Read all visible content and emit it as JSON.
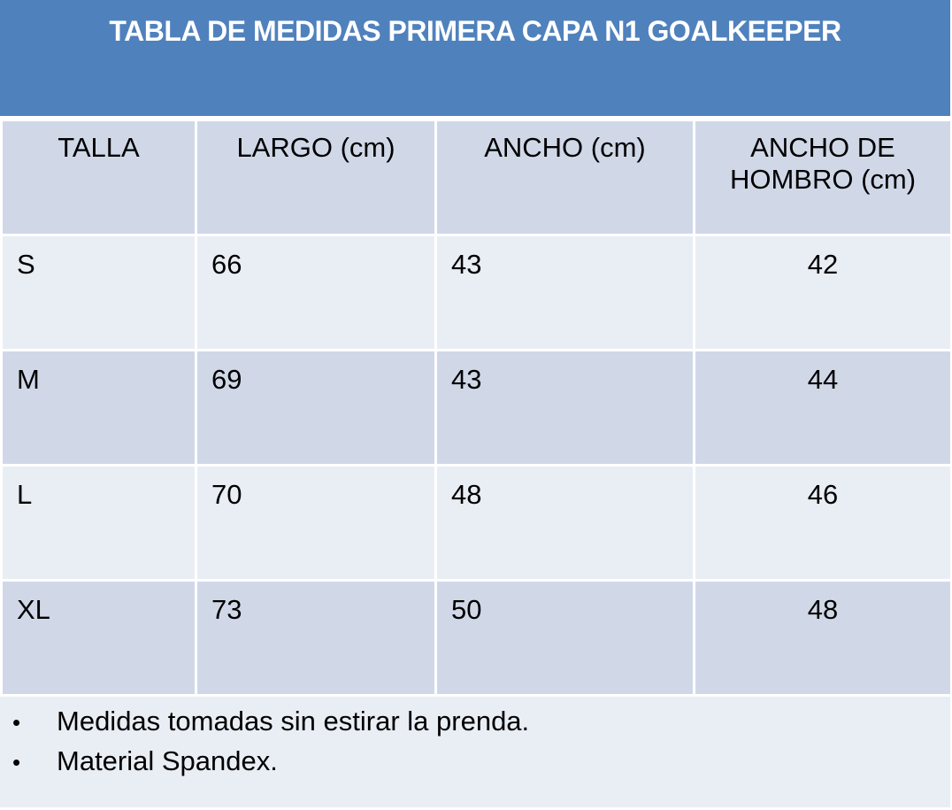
{
  "title": "TABLA DE MEDIDAS PRIMERA CAPA N1 GOALKEEPER",
  "table": {
    "headers": [
      "TALLA",
      "LARGO (cm)",
      "ANCHO (cm)",
      "ANCHO DE HOMBRO (cm)"
    ],
    "rows": [
      [
        "S",
        "66",
        "43",
        "42"
      ],
      [
        "M",
        "69",
        "43",
        "44"
      ],
      [
        "L",
        "70",
        "48",
        "46"
      ],
      [
        "XL",
        "73",
        "50",
        "48"
      ]
    ]
  },
  "notes": [
    "Medidas tomadas sin estirar la prenda.",
    "Material Spandex."
  ],
  "bullet_glyph": "•",
  "colors": {
    "title_bg": "#4f81bd",
    "title_text": "#ffffff",
    "header_bg": "#d0d8e8",
    "row_light_bg": "#e9edf4",
    "row_dark_bg": "#d0d8e8",
    "border": "#ffffff"
  }
}
